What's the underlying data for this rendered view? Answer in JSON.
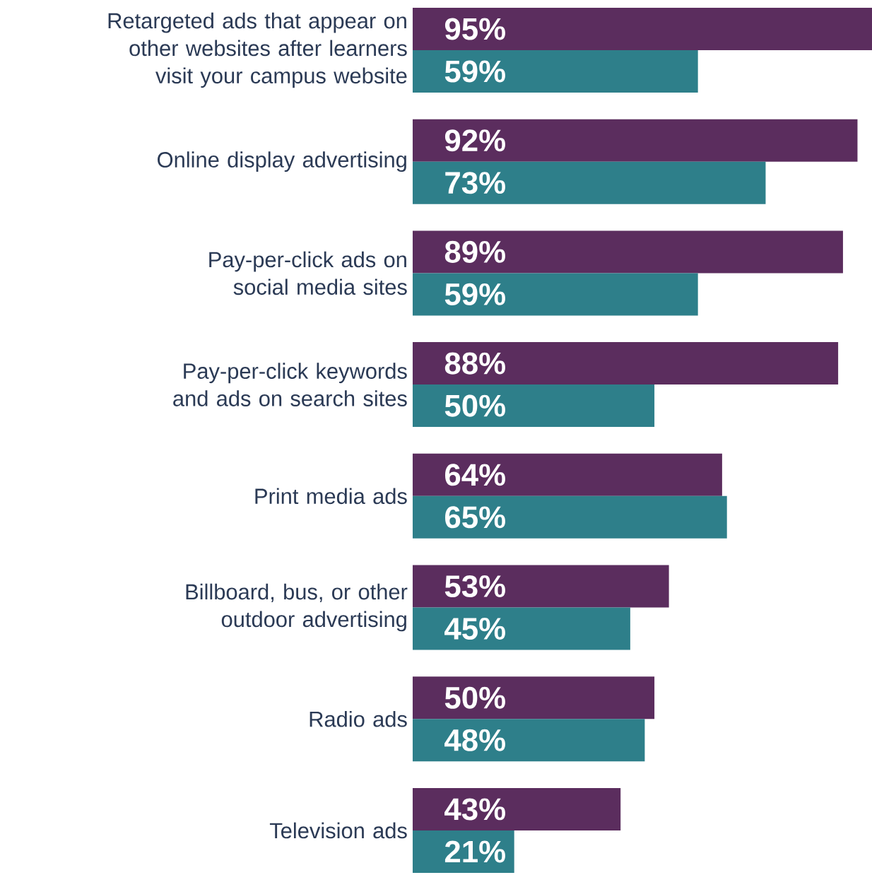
{
  "chart_data": {
    "type": "bar",
    "orientation": "horizontal",
    "tick_labels": "y",
    "xlim": [
      0,
      95
    ],
    "categories": [
      "Retargeted ads that appear on other websites after learners visit your campus website",
      "Online display advertising",
      "Pay-per-click ads on social media sites",
      "Pay-per-click keywords and ads on search sites",
      "Print media ads",
      "Billboard, bus, or other outdoor advertising",
      "Radio ads",
      "Television ads"
    ],
    "series": [
      {
        "color": "#5b2d5e",
        "values": [
          95,
          92,
          89,
          88,
          64,
          53,
          50,
          43
        ],
        "value_labels": [
          "95%",
          "92%",
          "89%",
          "88%",
          "64%",
          "53%",
          "50%",
          "43%"
        ]
      },
      {
        "color": "#2e7f8a",
        "values": [
          59,
          73,
          59,
          50,
          65,
          45,
          48,
          21
        ],
        "value_labels": [
          "59%",
          "73%",
          "59%",
          "50%",
          "65%",
          "45%",
          "48%",
          "21%"
        ]
      }
    ]
  }
}
